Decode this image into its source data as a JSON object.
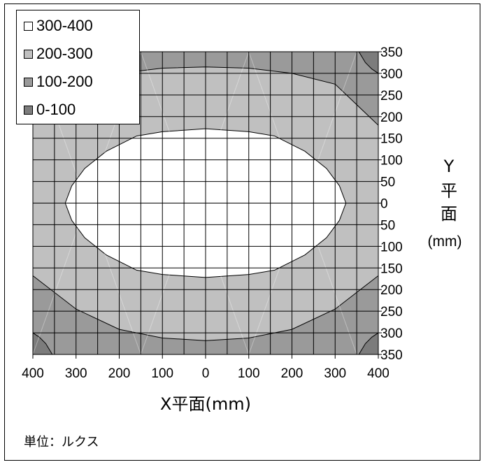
{
  "chart_data": {
    "type": "contour",
    "title": "",
    "xlabel": "X平面(mm)",
    "ylabel_lines": [
      "Y",
      "平",
      "面",
      "(mm)"
    ],
    "x_tick_labels": [
      "400",
      "300",
      "200",
      "100",
      "0",
      "100",
      "200",
      "300",
      "400"
    ],
    "y_tick_labels": [
      "350",
      "300",
      "250",
      "200",
      "150",
      "100",
      "50",
      "0",
      "50",
      "100",
      "150",
      "200",
      "250",
      "300",
      "350"
    ],
    "xlim": [
      -400,
      400
    ],
    "ylim": [
      -350,
      350
    ],
    "grid": true,
    "grid_step": 50,
    "legend_position": "top-left",
    "legend": [
      {
        "label": "300-400",
        "color": "#ffffff"
      },
      {
        "label": "200-300",
        "color": "#c0c0c0"
      },
      {
        "label": "100-200",
        "color": "#9a9a9a"
      },
      {
        "label": "0-100",
        "color": "#7c7c7c"
      }
    ],
    "contour_levels": [
      {
        "level": 300,
        "boundary": [
          [
            -325,
            0
          ],
          [
            -310,
            40
          ],
          [
            -280,
            80
          ],
          [
            -230,
            120
          ],
          [
            -160,
            155
          ],
          [
            -100,
            165
          ],
          [
            0,
            172
          ],
          [
            100,
            165
          ],
          [
            160,
            155
          ],
          [
            230,
            120
          ],
          [
            280,
            80
          ],
          [
            310,
            40
          ],
          [
            325,
            0
          ],
          [
            310,
            -40
          ],
          [
            280,
            -80
          ],
          [
            230,
            -120
          ],
          [
            160,
            -155
          ],
          [
            100,
            -165
          ],
          [
            0,
            -172
          ],
          [
            -100,
            -165
          ],
          [
            -160,
            -155
          ],
          [
            -230,
            -120
          ],
          [
            -280,
            -80
          ],
          [
            -310,
            -40
          ]
        ]
      },
      {
        "level": 200,
        "upper": [
          [
            -400,
            238
          ],
          [
            -300,
            275
          ],
          [
            -200,
            300
          ],
          [
            -100,
            312
          ],
          [
            0,
            315
          ],
          [
            100,
            312
          ],
          [
            200,
            300
          ],
          [
            300,
            275
          ],
          [
            400,
            180
          ]
        ],
        "lower": [
          [
            -400,
            -168
          ],
          [
            -300,
            -245
          ],
          [
            -200,
            -292
          ],
          [
            -100,
            -312
          ],
          [
            0,
            -318
          ],
          [
            100,
            -312
          ],
          [
            200,
            -292
          ],
          [
            300,
            -245
          ],
          [
            400,
            -168
          ]
        ]
      },
      {
        "level": 100,
        "arcs": [
          [
            [
              -400,
              300
            ],
            [
              -385,
              310
            ],
            [
              -370,
              325
            ],
            [
              -355,
              350
            ]
          ],
          [
            [
              355,
              350
            ],
            [
              370,
              325
            ],
            [
              385,
              310
            ],
            [
              400,
              300
            ]
          ],
          [
            [
              -400,
              -300
            ],
            [
              -385,
              -310
            ],
            [
              -370,
              -325
            ],
            [
              -355,
              -350
            ]
          ],
          [
            [
              355,
              -350
            ],
            [
              370,
              -325
            ],
            [
              385,
              -310
            ],
            [
              400,
              -300
            ]
          ]
        ]
      }
    ]
  },
  "note": "単位：ルクス"
}
